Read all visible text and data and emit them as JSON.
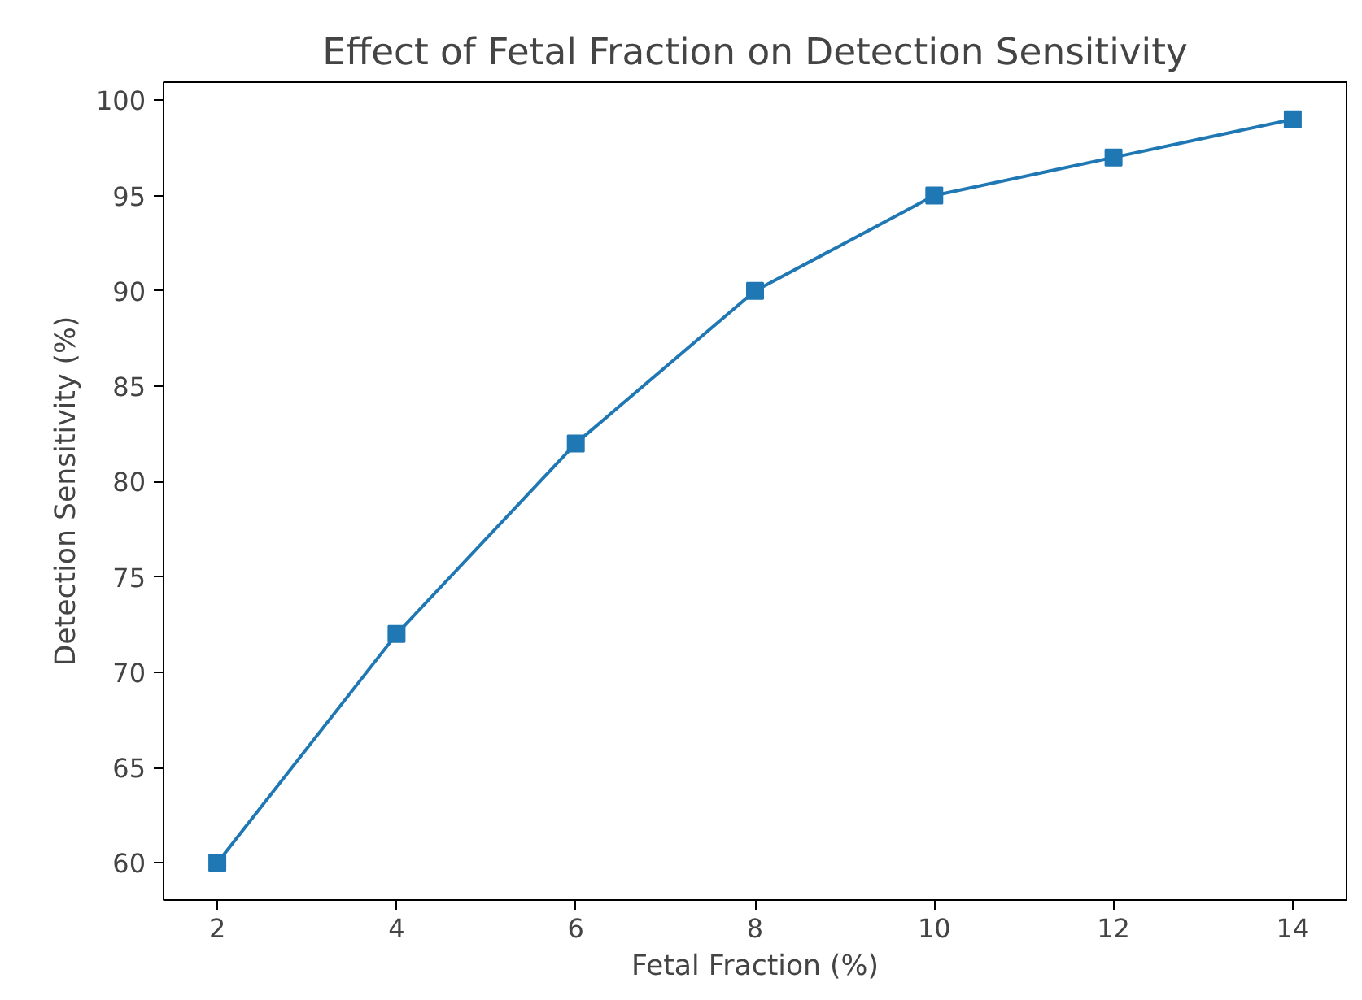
{
  "chart_data": {
    "type": "line",
    "title": "Effect of Fetal Fraction on Detection Sensitivity",
    "xlabel": "Fetal Fraction (%)",
    "ylabel": "Detection Sensitivity (%)",
    "x": [
      2,
      4,
      6,
      8,
      10,
      12,
      14
    ],
    "series": [
      {
        "color": "#1f77b4",
        "values": [
          60,
          72,
          82,
          90,
          95,
          97,
          99
        ]
      }
    ],
    "xlim": [
      1.4,
      14.6
    ],
    "ylim": [
      58.05,
      100.95
    ],
    "xticks": [
      2,
      4,
      6,
      8,
      10,
      12,
      14
    ],
    "yticks": [
      60,
      65,
      70,
      75,
      80,
      85,
      90,
      95,
      100
    ],
    "marker": "square",
    "line_style": "solid",
    "grid": false
  }
}
